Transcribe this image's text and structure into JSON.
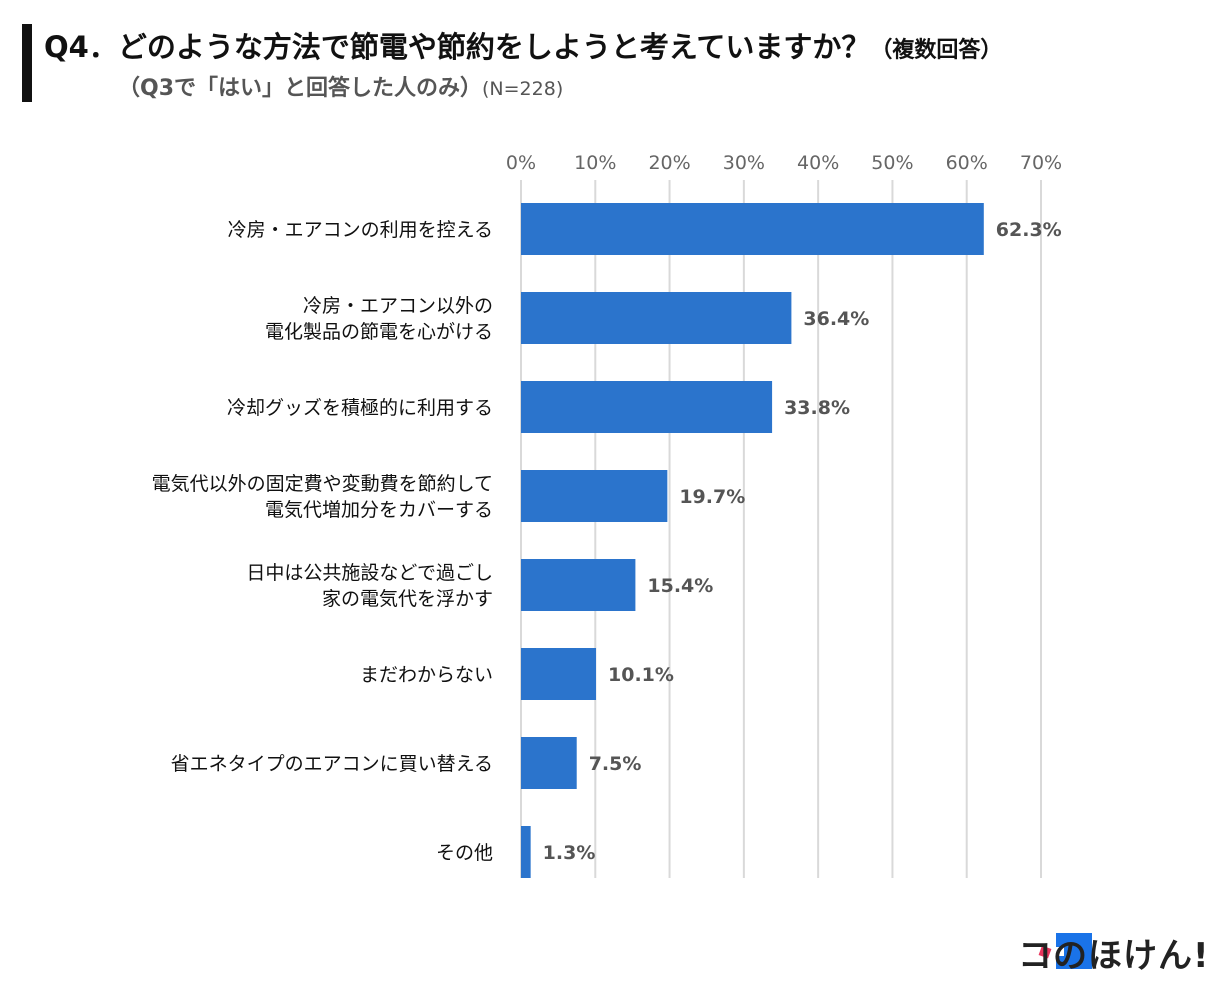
{
  "header": {
    "title": "Q4．どのような方法で節電や節約をしようと考えていますか？",
    "title_suffix": "（複数回答）",
    "subtitle": "（Q3で「はい」と回答した人のみ）",
    "subtitle_n": "(N=228)"
  },
  "chart_data": {
    "type": "bar",
    "orientation": "horizontal",
    "categories": [
      [
        "冷房・エアコンの利用を控える"
      ],
      [
        "冷房・エアコン以外の",
        "電化製品の節電を心がける"
      ],
      [
        "冷却グッズを積極的に利用する"
      ],
      [
        "電気代以外の固定費や変動費を節約して",
        "電気代増加分をカバーする"
      ],
      [
        "日中は公共施設などで過ごし",
        "家の電気代を浮かす"
      ],
      [
        "まだわからない"
      ],
      [
        "省エネタイプのエアコンに買い替える"
      ],
      [
        "その他"
      ]
    ],
    "values": [
      62.3,
      36.4,
      33.8,
      19.7,
      15.4,
      10.1,
      7.5,
      1.3
    ],
    "value_labels": [
      "62.3%",
      "36.4%",
      "33.8%",
      "19.7%",
      "15.4%",
      "10.1%",
      "7.5%",
      "1.3%"
    ],
    "x_ticks": [
      "0%",
      "10%",
      "20%",
      "30%",
      "40%",
      "50%",
      "60%",
      "70%"
    ],
    "xlim": [
      0,
      70
    ],
    "grid": true,
    "bar_color": "#2b74cc",
    "grid_color": "#d9d9d9"
  },
  "logo": {
    "text": "コのほけん!",
    "accent_colors": [
      "#1a73e8",
      "#e8365d"
    ]
  }
}
